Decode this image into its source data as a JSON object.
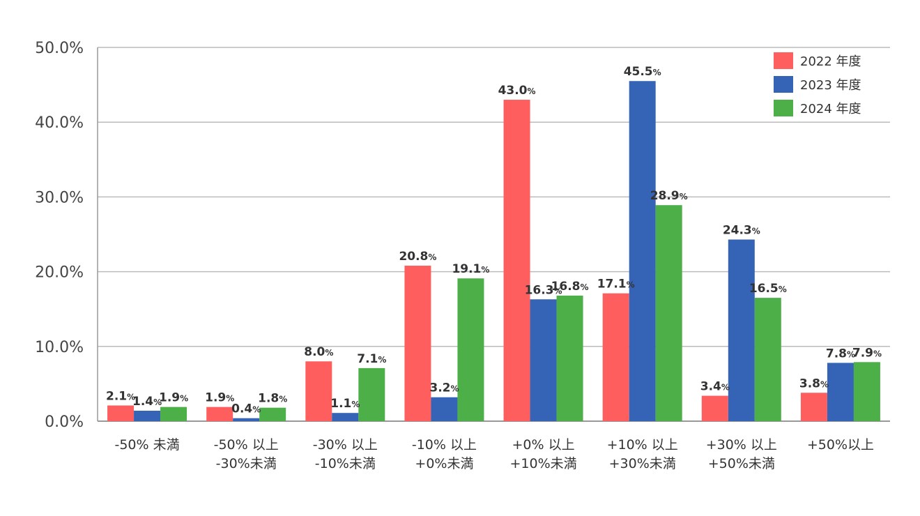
{
  "chart_data": {
    "type": "bar",
    "title": "",
    "xlabel": "",
    "ylabel": "",
    "ylim": [
      0,
      50
    ],
    "yticks": [
      "0.0%",
      "10.0%",
      "20.0%",
      "30.0%",
      "40.0%",
      "50.0%"
    ],
    "grid": true,
    "legend_position": "top-right",
    "value_unit": "%",
    "categories": [
      [
        "-50% 未満"
      ],
      [
        "-50% 以上",
        "-30%未満"
      ],
      [
        "-30% 以上",
        "-10%未満"
      ],
      [
        "-10% 以上",
        "+0%未満"
      ],
      [
        "+0% 以上",
        "+10%未満"
      ],
      [
        "+10% 以上",
        "+30%未満"
      ],
      [
        "+30% 以上",
        "+50%未満"
      ],
      [
        "+50%以上"
      ]
    ],
    "series": [
      {
        "name": "2022 年度",
        "color": "#ff5e5e",
        "values": [
          2.1,
          1.9,
          8.0,
          20.8,
          43.0,
          17.1,
          3.4,
          3.8
        ],
        "labels": [
          "2.1",
          "1.9",
          "8.0",
          "20.8",
          "43.0",
          "17.1",
          "3.4",
          "3.8"
        ]
      },
      {
        "name": "2023 年度",
        "color": "#3563b5",
        "values": [
          1.4,
          0.4,
          1.1,
          3.2,
          16.3,
          45.5,
          24.3,
          7.8
        ],
        "labels": [
          "1.4",
          "0.4",
          "1.1",
          "3.2",
          "16.3",
          "45.5",
          "24.3",
          "7.8"
        ]
      },
      {
        "name": "2024 年度",
        "color": "#4caf47",
        "values": [
          1.9,
          1.8,
          7.1,
          19.1,
          16.8,
          28.9,
          16.5,
          7.9
        ],
        "labels": [
          "1.9",
          "1.8",
          "7.1",
          "19.1",
          "16.8",
          "28.9",
          "16.5",
          "7.9"
        ]
      }
    ]
  }
}
